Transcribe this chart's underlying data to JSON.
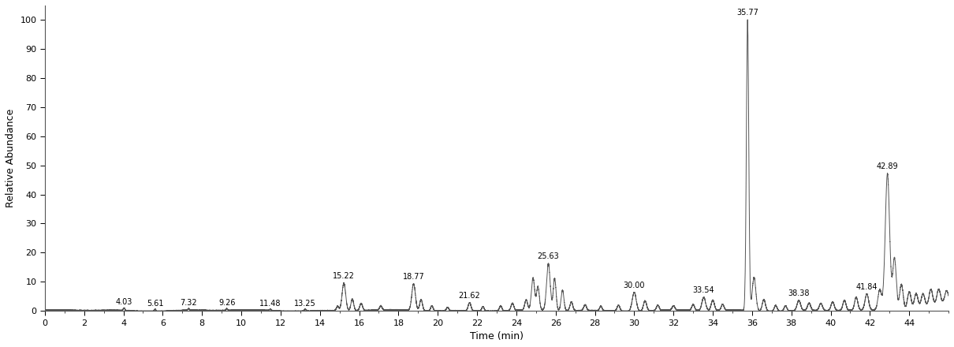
{
  "xlabel": "Time (min)",
  "ylabel": "Relative Abundance",
  "xlim": [
    0,
    46
  ],
  "ylim": [
    0,
    105
  ],
  "yticks": [
    0,
    10,
    20,
    30,
    40,
    50,
    60,
    70,
    80,
    90,
    100
  ],
  "xticks": [
    0,
    2,
    4,
    6,
    8,
    10,
    12,
    14,
    16,
    18,
    20,
    22,
    24,
    26,
    28,
    30,
    32,
    34,
    36,
    38,
    40,
    42,
    44
  ],
  "background_color": "#ffffff",
  "line_color": "#555555",
  "line_width": 0.7,
  "peaks": [
    {
      "time": 4.03,
      "height": 0.9,
      "sigma": 0.04,
      "label": "4.03"
    },
    {
      "time": 5.61,
      "height": 0.7,
      "sigma": 0.04,
      "label": "5.61"
    },
    {
      "time": 7.32,
      "height": 0.6,
      "sigma": 0.04,
      "label": "7.32"
    },
    {
      "time": 9.26,
      "height": 0.6,
      "sigma": 0.04,
      "label": "9.26"
    },
    {
      "time": 11.48,
      "height": 0.5,
      "sigma": 0.04,
      "label": "11.48"
    },
    {
      "time": 13.25,
      "height": 0.6,
      "sigma": 0.05,
      "label": "13.25"
    },
    {
      "time": 14.9,
      "height": 1.5,
      "sigma": 0.06,
      "label": ""
    },
    {
      "time": 15.22,
      "height": 9.5,
      "sigma": 0.09,
      "label": "15.22"
    },
    {
      "time": 15.65,
      "height": 4.0,
      "sigma": 0.07,
      "label": ""
    },
    {
      "time": 16.1,
      "height": 2.5,
      "sigma": 0.07,
      "label": ""
    },
    {
      "time": 17.1,
      "height": 1.5,
      "sigma": 0.06,
      "label": ""
    },
    {
      "time": 18.77,
      "height": 9.2,
      "sigma": 0.09,
      "label": "18.77"
    },
    {
      "time": 19.15,
      "height": 3.8,
      "sigma": 0.07,
      "label": ""
    },
    {
      "time": 19.7,
      "height": 1.8,
      "sigma": 0.06,
      "label": ""
    },
    {
      "time": 20.5,
      "height": 1.2,
      "sigma": 0.06,
      "label": ""
    },
    {
      "time": 21.62,
      "height": 2.8,
      "sigma": 0.07,
      "label": "21.62"
    },
    {
      "time": 22.3,
      "height": 1.5,
      "sigma": 0.06,
      "label": ""
    },
    {
      "time": 23.2,
      "height": 1.8,
      "sigma": 0.06,
      "label": ""
    },
    {
      "time": 23.8,
      "height": 2.5,
      "sigma": 0.07,
      "label": ""
    },
    {
      "time": 24.5,
      "height": 3.5,
      "sigma": 0.07,
      "label": ""
    },
    {
      "time": 24.85,
      "height": 11.0,
      "sigma": 0.08,
      "label": ""
    },
    {
      "time": 25.1,
      "height": 8.0,
      "sigma": 0.07,
      "label": ""
    },
    {
      "time": 25.63,
      "height": 16.0,
      "sigma": 0.09,
      "label": "25.63"
    },
    {
      "time": 25.95,
      "height": 11.0,
      "sigma": 0.07,
      "label": ""
    },
    {
      "time": 26.35,
      "height": 7.0,
      "sigma": 0.07,
      "label": ""
    },
    {
      "time": 26.8,
      "height": 3.0,
      "sigma": 0.07,
      "label": ""
    },
    {
      "time": 27.5,
      "height": 2.0,
      "sigma": 0.07,
      "label": ""
    },
    {
      "time": 28.3,
      "height": 1.5,
      "sigma": 0.06,
      "label": ""
    },
    {
      "time": 29.2,
      "height": 2.0,
      "sigma": 0.07,
      "label": ""
    },
    {
      "time": 30.0,
      "height": 6.5,
      "sigma": 0.1,
      "label": "30.00"
    },
    {
      "time": 30.55,
      "height": 3.5,
      "sigma": 0.08,
      "label": ""
    },
    {
      "time": 31.2,
      "height": 1.8,
      "sigma": 0.07,
      "label": ""
    },
    {
      "time": 32.0,
      "height": 1.5,
      "sigma": 0.07,
      "label": ""
    },
    {
      "time": 33.0,
      "height": 2.0,
      "sigma": 0.07,
      "label": ""
    },
    {
      "time": 33.54,
      "height": 4.5,
      "sigma": 0.09,
      "label": "33.54"
    },
    {
      "time": 34.0,
      "height": 3.5,
      "sigma": 0.08,
      "label": ""
    },
    {
      "time": 34.5,
      "height": 2.0,
      "sigma": 0.07,
      "label": ""
    },
    {
      "time": 35.77,
      "height": 100.0,
      "sigma": 0.06,
      "label": "35.77"
    },
    {
      "time": 36.1,
      "height": 11.5,
      "sigma": 0.09,
      "label": ""
    },
    {
      "time": 36.6,
      "height": 4.0,
      "sigma": 0.08,
      "label": ""
    },
    {
      "time": 37.2,
      "height": 2.0,
      "sigma": 0.07,
      "label": ""
    },
    {
      "time": 37.7,
      "height": 1.8,
      "sigma": 0.07,
      "label": ""
    },
    {
      "time": 38.38,
      "height": 3.5,
      "sigma": 0.09,
      "label": "38.38"
    },
    {
      "time": 38.9,
      "height": 2.5,
      "sigma": 0.08,
      "label": ""
    },
    {
      "time": 39.5,
      "height": 2.5,
      "sigma": 0.08,
      "label": ""
    },
    {
      "time": 40.1,
      "height": 3.0,
      "sigma": 0.08,
      "label": ""
    },
    {
      "time": 40.7,
      "height": 3.5,
      "sigma": 0.08,
      "label": ""
    },
    {
      "time": 41.3,
      "height": 4.5,
      "sigma": 0.08,
      "label": ""
    },
    {
      "time": 41.84,
      "height": 5.5,
      "sigma": 0.09,
      "label": "41.84"
    },
    {
      "time": 42.5,
      "height": 7.0,
      "sigma": 0.09,
      "label": ""
    },
    {
      "time": 42.89,
      "height": 47.0,
      "sigma": 0.11,
      "label": "42.89"
    },
    {
      "time": 43.25,
      "height": 18.0,
      "sigma": 0.09,
      "label": ""
    },
    {
      "time": 43.6,
      "height": 9.0,
      "sigma": 0.09,
      "label": ""
    },
    {
      "time": 44.0,
      "height": 6.0,
      "sigma": 0.09,
      "label": ""
    },
    {
      "time": 44.35,
      "height": 5.0,
      "sigma": 0.09,
      "label": ""
    },
    {
      "time": 44.7,
      "height": 4.5,
      "sigma": 0.09,
      "label": ""
    },
    {
      "time": 45.1,
      "height": 5.5,
      "sigma": 0.09,
      "label": ""
    },
    {
      "time": 45.5,
      "height": 5.0,
      "sigma": 0.09,
      "label": ""
    },
    {
      "time": 45.9,
      "height": 4.0,
      "sigma": 0.09,
      "label": ""
    }
  ],
  "label_offsets": {
    "4.03": 0.5,
    "5.61": 0.5,
    "7.32": 0.5,
    "9.26": 0.5,
    "11.48": 0.5,
    "13.25": 0.5,
    "15.22": 1.0,
    "18.77": 1.0,
    "21.62": 1.0,
    "25.63": 1.0,
    "30.00": 1.0,
    "33.54": 1.0,
    "35.77": 1.0,
    "38.38": 1.0,
    "41.84": 1.0,
    "42.89": 1.0
  }
}
